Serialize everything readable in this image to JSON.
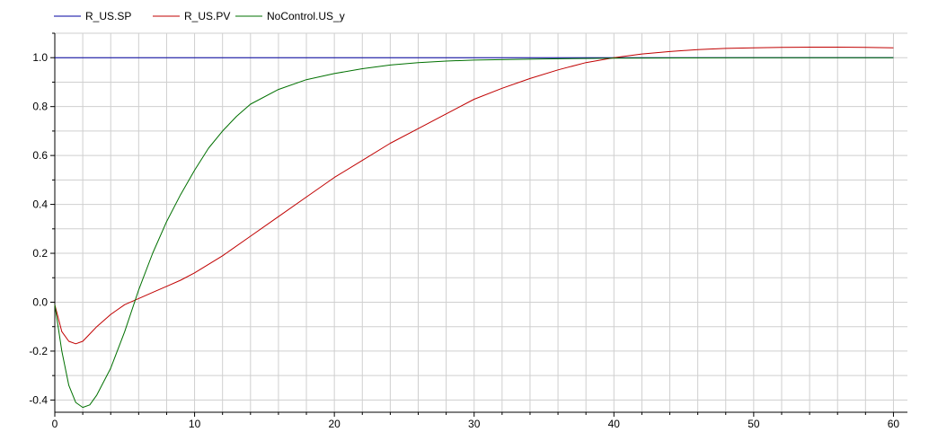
{
  "chart_data": {
    "type": "line",
    "title": "",
    "xlabel": "",
    "ylabel": "",
    "xlim": [
      0,
      61
    ],
    "ylim": [
      -0.45,
      1.1
    ],
    "grid": true,
    "legend_position": "top-left",
    "x_ticks": [
      0,
      10,
      20,
      30,
      40,
      50,
      60
    ],
    "x_tick_labels": [
      "0",
      "10",
      "20",
      "30",
      "40",
      "50",
      "60"
    ],
    "y_ticks": [
      -0.4,
      -0.2,
      0.0,
      0.2,
      0.4,
      0.6,
      0.8,
      1.0
    ],
    "y_tick_labels": [
      "-0.4",
      "-0.2",
      "0.0",
      "0.2",
      "0.4",
      "0.6",
      "0.8",
      "1.0"
    ],
    "series": [
      {
        "name": "R_US.SP",
        "color": "#0000a0",
        "x": [
          0,
          60
        ],
        "y": [
          1.0,
          1.0
        ]
      },
      {
        "name": "R_US.PV",
        "color": "#c00000",
        "x": [
          0,
          0.5,
          1.0,
          1.5,
          2.0,
          2.5,
          3,
          4,
          5,
          6,
          7,
          8,
          9,
          10,
          12,
          14,
          16,
          18,
          20,
          22,
          24,
          26,
          28,
          30,
          32,
          34,
          36,
          38,
          40,
          42,
          44,
          46,
          48,
          50,
          52,
          54,
          56,
          58,
          60
        ],
        "y": [
          -0.01,
          -0.12,
          -0.16,
          -0.17,
          -0.16,
          -0.13,
          -0.1,
          -0.05,
          -0.01,
          0.015,
          0.04,
          0.065,
          0.09,
          0.12,
          0.19,
          0.27,
          0.35,
          0.43,
          0.51,
          0.58,
          0.65,
          0.71,
          0.77,
          0.83,
          0.875,
          0.915,
          0.95,
          0.98,
          1.0,
          1.015,
          1.025,
          1.033,
          1.038,
          1.04,
          1.042,
          1.043,
          1.043,
          1.042,
          1.04
        ]
      },
      {
        "name": "NoControl.US_y",
        "color": "#007000",
        "x": [
          0,
          0.5,
          1.0,
          1.5,
          2.0,
          2.5,
          3,
          4,
          5,
          6,
          7,
          8,
          9,
          10,
          11,
          12,
          13,
          14,
          16,
          18,
          20,
          22,
          24,
          26,
          28,
          30,
          35,
          40,
          45,
          50,
          55,
          60
        ],
        "y": [
          -0.01,
          -0.2,
          -0.34,
          -0.41,
          -0.43,
          -0.42,
          -0.38,
          -0.27,
          -0.12,
          0.05,
          0.2,
          0.33,
          0.44,
          0.54,
          0.63,
          0.7,
          0.76,
          0.81,
          0.87,
          0.91,
          0.935,
          0.955,
          0.97,
          0.98,
          0.986,
          0.99,
          0.995,
          0.998,
          0.999,
          1.0,
          1.0,
          1.0
        ]
      }
    ]
  }
}
